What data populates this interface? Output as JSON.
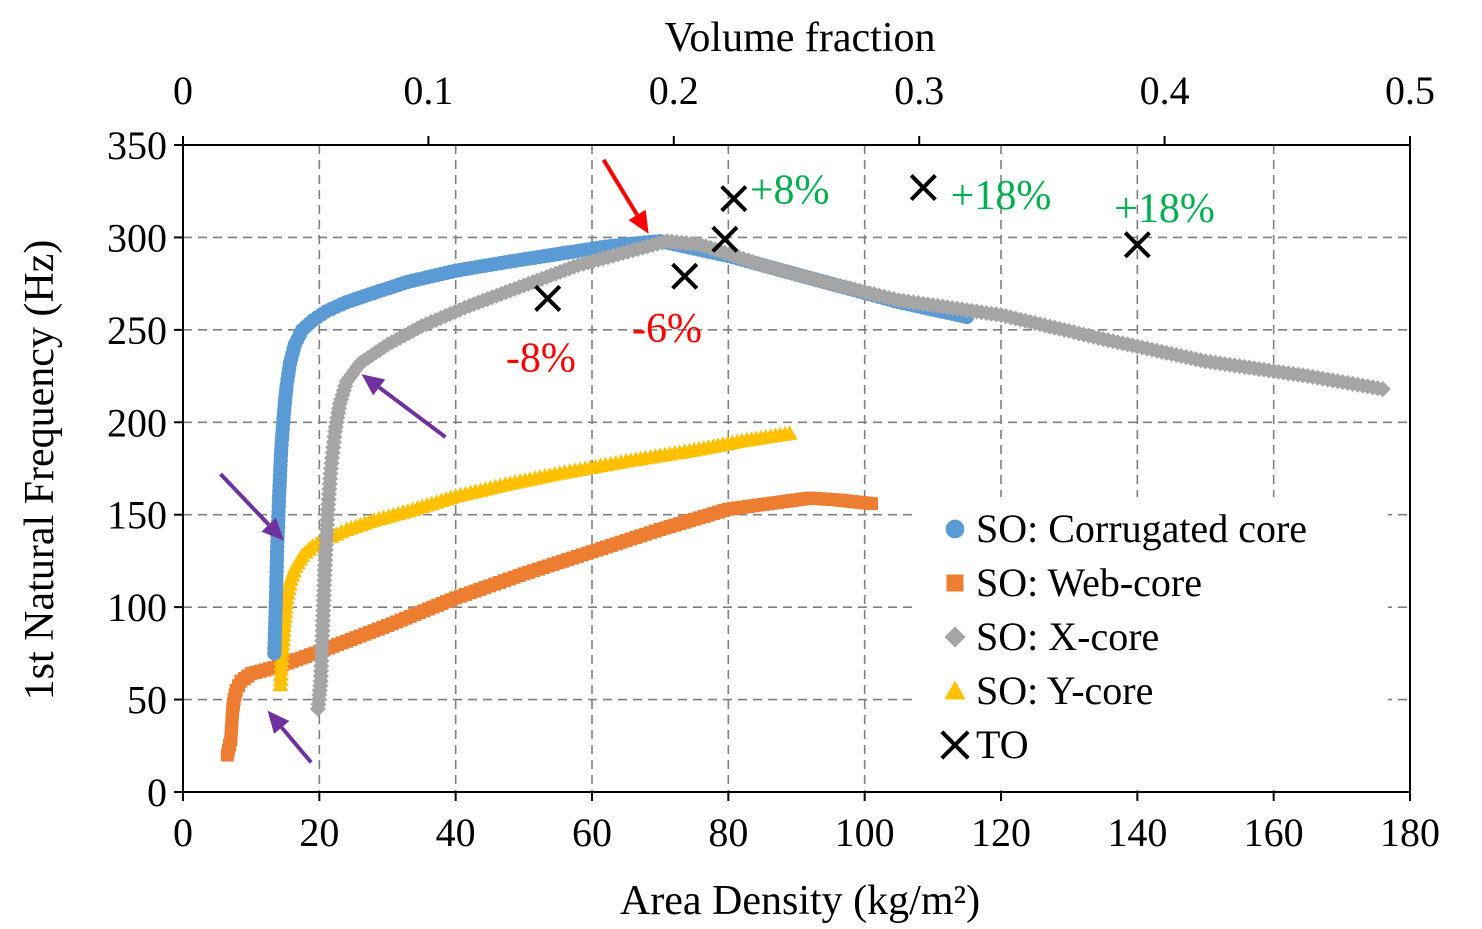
{
  "chart_data": {
    "type": "scatter",
    "title": "",
    "xlabel": "Area Density (kg/m²)",
    "ylabel": "1st Natural Frequency (Hz)",
    "x2label": "Volume fraction",
    "xlim": [
      0,
      180
    ],
    "ylim": [
      0,
      350
    ],
    "x2lim": [
      0,
      0.5
    ],
    "xticks": [
      "0",
      "20",
      "40",
      "60",
      "80",
      "100",
      "120",
      "140",
      "160",
      "180"
    ],
    "yticks": [
      "0",
      "50",
      "100",
      "150",
      "200",
      "250",
      "300",
      "350"
    ],
    "x2ticks": [
      "0",
      "0.1",
      "0.2",
      "0.3",
      "0.4",
      "0.5"
    ],
    "grid": true,
    "legend_position": "right-middle",
    "series": [
      {
        "name": "SO: Corrugated core",
        "marker": "circle",
        "color": "#5b9bd5",
        "x": [
          13.4,
          13.6,
          13.8,
          14.1,
          14.4,
          14.8,
          15.2,
          15.7,
          16.4,
          17.5,
          19,
          21,
          24,
          28,
          33,
          40,
          48,
          55,
          62,
          67,
          70,
          80,
          95,
          105,
          115
        ],
        "y": [
          75,
          100,
          130,
          160,
          185,
          205,
          220,
          232,
          242,
          250,
          255,
          260,
          265,
          270,
          276,
          282,
          287,
          291,
          295,
          297,
          298,
          290,
          275,
          265,
          257
        ]
      },
      {
        "name": "SO: Web-core",
        "marker": "square",
        "color": "#ed7d31",
        "x": [
          6.5,
          7,
          7.3,
          7.5,
          7.8,
          8.5,
          10,
          14,
          20,
          30,
          40,
          50,
          60,
          70,
          80,
          88,
          92,
          96,
          101
        ],
        "y": [
          20,
          28,
          45,
          50,
          55,
          60,
          64,
          68,
          76,
          90,
          105,
          118,
          130,
          142,
          153,
          157,
          159,
          158,
          156
        ]
      },
      {
        "name": "SO: X-core",
        "marker": "diamond",
        "color": "#a5a5a5",
        "x": [
          19.8,
          20.2,
          20.5,
          20.8,
          21.2,
          21.7,
          22.3,
          23,
          24,
          26,
          30,
          35,
          42,
          50,
          58,
          66,
          71,
          76,
          85,
          95,
          105,
          120,
          135,
          150,
          165,
          176
        ],
        "y": [
          45,
          60,
          90,
          120,
          150,
          175,
          195,
          210,
          222,
          232,
          242,
          252,
          263,
          274,
          285,
          293,
          298,
          296,
          285,
          275,
          266,
          258,
          245,
          233,
          225,
          218
        ]
      },
      {
        "name": "SO: Y-core",
        "marker": "triangle",
        "color": "#ffc000",
        "x": [
          14.3,
          14.5,
          14.8,
          15.2,
          15.8,
          16.5,
          17.5,
          19,
          21,
          24,
          28,
          33,
          40,
          48,
          56,
          65,
          75,
          82,
          89
        ],
        "y": [
          58,
          75,
          90,
          105,
          115,
          122,
          128,
          133,
          137,
          142,
          147,
          152,
          160,
          167,
          173,
          179,
          185,
          190,
          194
        ]
      },
      {
        "name": "TO",
        "marker": "x",
        "color": "#000000",
        "x": [
          53.5,
          73.6,
          79.5,
          80.8,
          108.6,
          140
        ],
        "y": [
          267,
          279,
          299,
          321,
          327,
          296
        ]
      }
    ],
    "annotations": [
      {
        "text": "-8%",
        "x": 52.5,
        "y": 235,
        "color": "#ff0000"
      },
      {
        "text": "-6%",
        "x": 71,
        "y": 251,
        "color": "#ff0000"
      },
      {
        "text": "+8%",
        "x": 89,
        "y": 326,
        "color": "#00b050"
      },
      {
        "text": "+18%",
        "x": 120,
        "y": 323,
        "color": "#00b050"
      },
      {
        "text": "+18%",
        "x": 144,
        "y": 316,
        "color": "#00b050"
      }
    ],
    "arrows": [
      {
        "color": "#ff0000",
        "from": [
          61.7,
          342
        ],
        "to": [
          68.3,
          302
        ]
      },
      {
        "color": "#7030a0",
        "from": [
          38.5,
          192
        ],
        "to": [
          26.2,
          226
        ]
      },
      {
        "color": "#7030a0",
        "from": [
          5.5,
          172
        ],
        "to": [
          14.8,
          136
        ]
      },
      {
        "color": "#7030a0",
        "from": [
          18.8,
          16
        ],
        "to": [
          12.4,
          44
        ]
      }
    ]
  }
}
